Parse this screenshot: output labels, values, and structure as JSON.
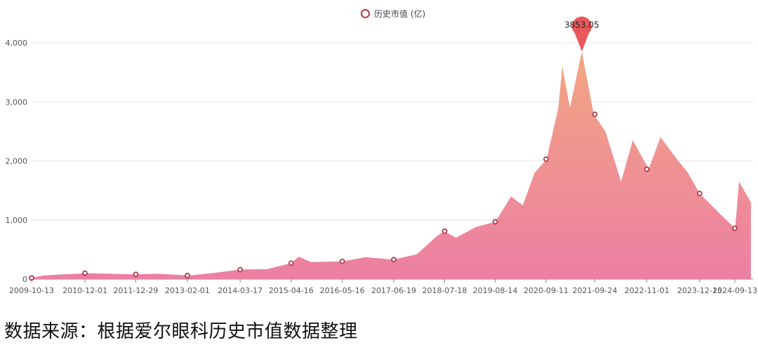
{
  "chart_data": {
    "type": "area",
    "title": "",
    "xlabel": "",
    "ylabel": "",
    "legend": {
      "label": "历史市值 (亿)",
      "position": "top-center"
    },
    "ylim": [
      0,
      4250
    ],
    "yticks": [
      "0",
      "1,000",
      "2,000",
      "3,000",
      "4,000"
    ],
    "ytick_values": [
      0,
      1000,
      2000,
      3000,
      4000
    ],
    "xtick_labels": [
      "2009-10-13",
      "2010-12-01",
      "2011-12-29",
      "2013-02-01",
      "2014-03-17",
      "2015-04-16",
      "2016-05-16",
      "2017-06-19",
      "2018-07-18",
      "2019-08-14",
      "2020-09-11",
      "2021-09-24",
      "2022-11-01",
      "2023-12-15",
      "2024-09-13"
    ],
    "peak": {
      "label": "3853.05",
      "date": "2021-06",
      "value": 3853.05
    },
    "marker_points": [
      {
        "date": "2009-10-13",
        "value": 20
      },
      {
        "date": "2010-12-01",
        "value": 100
      },
      {
        "date": "2011-12-29",
        "value": 80
      },
      {
        "date": "2013-02-01",
        "value": 60
      },
      {
        "date": "2014-03-17",
        "value": 160
      },
      {
        "date": "2015-04-16",
        "value": 270
      },
      {
        "date": "2016-05-16",
        "value": 300
      },
      {
        "date": "2017-06-19",
        "value": 330
      },
      {
        "date": "2018-07-18",
        "value": 810
      },
      {
        "date": "2019-08-14",
        "value": 970
      },
      {
        "date": "2020-09-11",
        "value": 2030
      },
      {
        "date": "2021-09-24",
        "value": 2790
      },
      {
        "date": "2022-11-01",
        "value": 1860
      },
      {
        "date": "2023-12-15",
        "value": 1450
      },
      {
        "date": "2024-09-13",
        "value": 860
      }
    ],
    "series": [
      {
        "points": [
          [
            "2009-10-13",
            20
          ],
          [
            "2010-01",
            60
          ],
          [
            "2010-06",
            80
          ],
          [
            "2010-12",
            100
          ],
          [
            "2011-06",
            90
          ],
          [
            "2011-12",
            80
          ],
          [
            "2012-06",
            90
          ],
          [
            "2013-02",
            60
          ],
          [
            "2013-09",
            110
          ],
          [
            "2014-03",
            160
          ],
          [
            "2014-10",
            170
          ],
          [
            "2015-04",
            270
          ],
          [
            "2015-06",
            380
          ],
          [
            "2015-09",
            290
          ],
          [
            "2016-05",
            300
          ],
          [
            "2016-11",
            370
          ],
          [
            "2017-06",
            330
          ],
          [
            "2017-12",
            420
          ],
          [
            "2018-05",
            720
          ],
          [
            "2018-07",
            810
          ],
          [
            "2018-10",
            700
          ],
          [
            "2019-03",
            880
          ],
          [
            "2019-08",
            970
          ],
          [
            "2019-12",
            1400
          ],
          [
            "2020-03",
            1250
          ],
          [
            "2020-06",
            1800
          ],
          [
            "2020-09",
            2030
          ],
          [
            "2020-12",
            2900
          ],
          [
            "2021-01",
            3600
          ],
          [
            "2021-03",
            2900
          ],
          [
            "2021-06",
            3853.05
          ],
          [
            "2021-09",
            2790
          ],
          [
            "2021-12",
            2500
          ],
          [
            "2022-04",
            1650
          ],
          [
            "2022-07",
            2350
          ],
          [
            "2022-11",
            1860
          ],
          [
            "2023-02",
            2400
          ],
          [
            "2023-06",
            2050
          ],
          [
            "2023-09",
            1800
          ],
          [
            "2023-12",
            1450
          ],
          [
            "2024-03",
            1250
          ],
          [
            "2024-06",
            1050
          ],
          [
            "2024-09",
            860
          ],
          [
            "2024-10",
            1650
          ],
          [
            "2025-01",
            1300
          ]
        ],
        "color_top": "#f2a582",
        "color_bottom": "#ec7fa3",
        "marker_color": "#b5374a"
      }
    ]
  },
  "source_text": "数据来源：根据爱尔眼科历史市值数据整理"
}
